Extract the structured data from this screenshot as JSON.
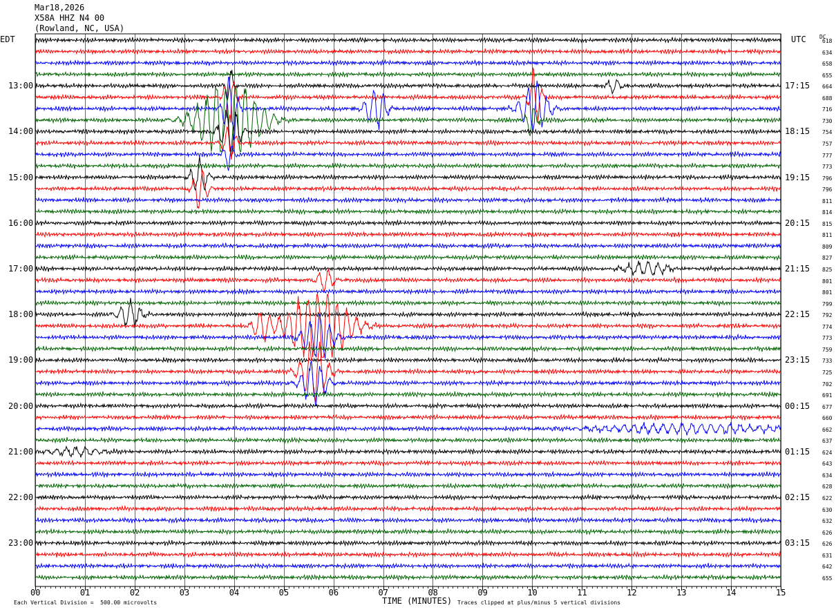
{
  "header": {
    "date": "Mar18,2026",
    "station": "X58A HHZ N4 00",
    "location": "(Rowland, NC, USA)"
  },
  "left_zone": "EDT",
  "right_zone": "UTC",
  "dc_header": "DC",
  "footer": {
    "scale_note": "Each Vertical Division =  500.00 microvolts",
    "clip_note": "Traces clipped at plus/minus 5 vertical divisions"
  },
  "colors": [
    "#000000",
    "#ff0000",
    "#0000ff",
    "#006400"
  ],
  "chart_data": {
    "type": "line",
    "title": "",
    "xlabel": "TIME (MINUTES)",
    "ylabel": "",
    "xlim": [
      0,
      15
    ],
    "x_ticks": [
      "00",
      "01",
      "02",
      "03",
      "04",
      "05",
      "06",
      "07",
      "08",
      "09",
      "10",
      "11",
      "12",
      "13",
      "14",
      "15"
    ],
    "grid": true,
    "traces_count": 48,
    "left_labels": [
      {
        "trace": 4,
        "label": "13:00"
      },
      {
        "trace": 8,
        "label": "14:00"
      },
      {
        "trace": 12,
        "label": "15:00"
      },
      {
        "trace": 16,
        "label": "16:00"
      },
      {
        "trace": 20,
        "label": "17:00"
      },
      {
        "trace": 24,
        "label": "18:00"
      },
      {
        "trace": 28,
        "label": "19:00"
      },
      {
        "trace": 32,
        "label": "20:00"
      },
      {
        "trace": 36,
        "label": "21:00"
      },
      {
        "trace": 40,
        "label": "22:00"
      },
      {
        "trace": 44,
        "label": "23:00"
      }
    ],
    "right_labels": [
      {
        "trace": 4,
        "label": "17:15"
      },
      {
        "trace": 8,
        "label": "18:15"
      },
      {
        "trace": 12,
        "label": "19:15"
      },
      {
        "trace": 16,
        "label": "20:15"
      },
      {
        "trace": 20,
        "label": "21:15"
      },
      {
        "trace": 24,
        "label": "22:15"
      },
      {
        "trace": 28,
        "label": "23:15"
      },
      {
        "trace": 32,
        "label": "00:15"
      },
      {
        "trace": 36,
        "label": "01:15"
      },
      {
        "trace": 40,
        "label": "02:15"
      },
      {
        "trace": 44,
        "label": "03:15"
      }
    ],
    "dc_offsets": [
      "618",
      "634",
      "658",
      "655",
      "664",
      "688",
      "716",
      "730",
      "754",
      "757",
      "777",
      "773",
      "796",
      "796",
      "811",
      "814",
      "815",
      "811",
      "809",
      "827",
      "825",
      "801",
      "801",
      "799",
      "792",
      "774",
      "773",
      "759",
      "733",
      "725",
      "702",
      "691",
      "677",
      "660",
      "662",
      "637",
      "624",
      "643",
      "634",
      "628",
      "622",
      "630",
      "632",
      "626",
      "626",
      "631",
      "642",
      "655"
    ],
    "events": [
      {
        "trace": 4,
        "minute": 3.9,
        "width": 0.12,
        "amp": 2.4
      },
      {
        "trace": 5,
        "minute": 3.92,
        "width": 0.15,
        "amp": 4.0
      },
      {
        "trace": 6,
        "minute": 3.93,
        "width": 0.2,
        "amp": 4.5
      },
      {
        "trace": 7,
        "minute": 3.9,
        "width": 0.9,
        "amp": 5.0
      },
      {
        "trace": 8,
        "minute": 3.92,
        "width": 0.3,
        "amp": 2.8
      },
      {
        "trace": 9,
        "minute": 3.9,
        "width": 0.2,
        "amp": 2.0
      },
      {
        "trace": 10,
        "minute": 3.9,
        "width": 0.15,
        "amp": 1.8
      },
      {
        "trace": 6,
        "minute": 6.85,
        "width": 0.3,
        "amp": 2.6
      },
      {
        "trace": 6,
        "minute": 10.05,
        "width": 0.4,
        "amp": 3.0
      },
      {
        "trace": 5,
        "minute": 10.05,
        "width": 0.18,
        "amp": 3.2
      },
      {
        "trace": 7,
        "minute": 10.0,
        "width": 0.15,
        "amp": 2.2
      },
      {
        "trace": 4,
        "minute": 11.65,
        "width": 0.18,
        "amp": 1.1
      },
      {
        "trace": 12,
        "minute": 3.3,
        "width": 0.25,
        "amp": 2.0
      },
      {
        "trace": 13,
        "minute": 3.32,
        "width": 0.22,
        "amp": 2.4
      },
      {
        "trace": 20,
        "minute": 12.3,
        "width": 0.6,
        "amp": 0.9
      },
      {
        "trace": 24,
        "minute": 1.9,
        "width": 0.35,
        "amp": 1.6
      },
      {
        "trace": 25,
        "minute": 4.55,
        "width": 0.25,
        "amp": 1.8
      },
      {
        "trace": 21,
        "minute": 5.85,
        "width": 0.25,
        "amp": 1.4
      },
      {
        "trace": 25,
        "minute": 5.7,
        "width": 0.9,
        "amp": 4.5
      },
      {
        "trace": 26,
        "minute": 5.7,
        "width": 0.4,
        "amp": 3.0
      },
      {
        "trace": 29,
        "minute": 5.6,
        "width": 0.4,
        "amp": 3.5
      },
      {
        "trace": 30,
        "minute": 5.6,
        "width": 0.35,
        "amp": 3.0
      },
      {
        "trace": 34,
        "minute": 13.2,
        "width": 2.8,
        "amp": 0.6
      },
      {
        "trace": 36,
        "minute": 0.8,
        "width": 0.8,
        "amp": 0.5
      }
    ]
  }
}
